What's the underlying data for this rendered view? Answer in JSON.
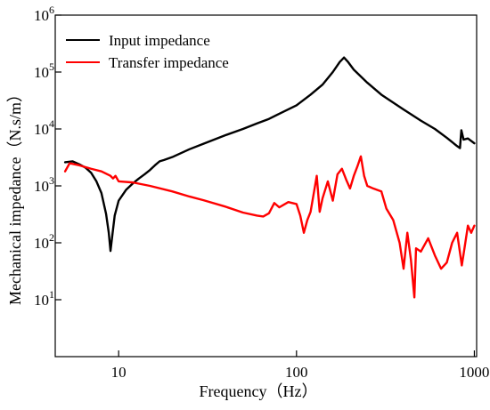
{
  "chart_data": {
    "type": "line",
    "xlabel": "Frequency（Hz）",
    "ylabel": "Mechanical impedance（N.s/m）",
    "x_scale": "log",
    "y_scale": "log",
    "xlim": [
      4.4,
      1030
    ],
    "ylim": [
      1,
      1000000
    ],
    "x_ticks": [
      10,
      100,
      1000
    ],
    "x_tick_labels": [
      "10",
      "100",
      "1000"
    ],
    "y_ticks": [
      10,
      100,
      1000,
      10000,
      100000,
      1000000
    ],
    "y_tick_labels": [
      {
        "base": "10",
        "exp": "1"
      },
      {
        "base": "10",
        "exp": "2"
      },
      {
        "base": "10",
        "exp": "3"
      },
      {
        "base": "10",
        "exp": "4"
      },
      {
        "base": "10",
        "exp": "5"
      },
      {
        "base": "10",
        "exp": "6"
      }
    ],
    "grid": false,
    "legend_position": "top-left",
    "series": [
      {
        "name": "Input impedance",
        "color": "#000000",
        "points": [
          [
            5,
            2600
          ],
          [
            5.5,
            2700
          ],
          [
            6,
            2400
          ],
          [
            6.5,
            2100
          ],
          [
            7,
            1700
          ],
          [
            7.5,
            1200
          ],
          [
            8,
            750
          ],
          [
            8.5,
            320
          ],
          [
            8.8,
            150
          ],
          [
            9.0,
            72
          ],
          [
            9.2,
            130
          ],
          [
            9.5,
            300
          ],
          [
            10,
            550
          ],
          [
            11,
            850
          ],
          [
            12,
            1100
          ],
          [
            13,
            1350
          ],
          [
            14,
            1600
          ],
          [
            15,
            1900
          ],
          [
            16,
            2300
          ],
          [
            17,
            2700
          ],
          [
            18,
            2850
          ],
          [
            20,
            3200
          ],
          [
            25,
            4400
          ],
          [
            30,
            5500
          ],
          [
            40,
            7800
          ],
          [
            50,
            10000
          ],
          [
            60,
            12500
          ],
          [
            70,
            15000
          ],
          [
            80,
            18500
          ],
          [
            100,
            26000
          ],
          [
            120,
            40000
          ],
          [
            140,
            60000
          ],
          [
            160,
            100000
          ],
          [
            175,
            150000
          ],
          [
            185,
            180000
          ],
          [
            195,
            150000
          ],
          [
            210,
            110000
          ],
          [
            250,
            65000
          ],
          [
            300,
            40000
          ],
          [
            400,
            22000
          ],
          [
            500,
            14000
          ],
          [
            600,
            10000
          ],
          [
            700,
            7000
          ],
          [
            800,
            5000
          ],
          [
            830,
            4600
          ],
          [
            845,
            9500
          ],
          [
            870,
            6500
          ],
          [
            920,
            6800
          ],
          [
            1000,
            5600
          ]
        ]
      },
      {
        "name": "Transfer impedance",
        "color": "#ff0000",
        "points": [
          [
            5,
            1800
          ],
          [
            5.3,
            2500
          ],
          [
            6,
            2300
          ],
          [
            7,
            2000
          ],
          [
            8,
            1800
          ],
          [
            9,
            1500
          ],
          [
            9.3,
            1350
          ],
          [
            9.6,
            1500
          ],
          [
            10,
            1200
          ],
          [
            12,
            1150
          ],
          [
            15,
            1000
          ],
          [
            20,
            800
          ],
          [
            25,
            650
          ],
          [
            30,
            560
          ],
          [
            40,
            430
          ],
          [
            50,
            340
          ],
          [
            60,
            300
          ],
          [
            65,
            290
          ],
          [
            70,
            330
          ],
          [
            75,
            500
          ],
          [
            80,
            420
          ],
          [
            90,
            520
          ],
          [
            100,
            480
          ],
          [
            105,
            300
          ],
          [
            110,
            150
          ],
          [
            115,
            250
          ],
          [
            120,
            350
          ],
          [
            130,
            1500
          ],
          [
            135,
            350
          ],
          [
            140,
            600
          ],
          [
            150,
            1200
          ],
          [
            160,
            550
          ],
          [
            170,
            1600
          ],
          [
            180,
            2000
          ],
          [
            190,
            1300
          ],
          [
            200,
            900
          ],
          [
            210,
            1500
          ],
          [
            220,
            2200
          ],
          [
            230,
            3300
          ],
          [
            240,
            1500
          ],
          [
            250,
            1000
          ],
          [
            270,
            900
          ],
          [
            300,
            800
          ],
          [
            320,
            400
          ],
          [
            350,
            250
          ],
          [
            380,
            100
          ],
          [
            400,
            35
          ],
          [
            420,
            150
          ],
          [
            440,
            50
          ],
          [
            460,
            11
          ],
          [
            470,
            80
          ],
          [
            500,
            70
          ],
          [
            550,
            120
          ],
          [
            600,
            60
          ],
          [
            650,
            35
          ],
          [
            700,
            45
          ],
          [
            750,
            100
          ],
          [
            800,
            150
          ],
          [
            850,
            40
          ],
          [
            880,
            80
          ],
          [
            920,
            200
          ],
          [
            960,
            150
          ],
          [
            1000,
            200
          ]
        ]
      }
    ]
  }
}
